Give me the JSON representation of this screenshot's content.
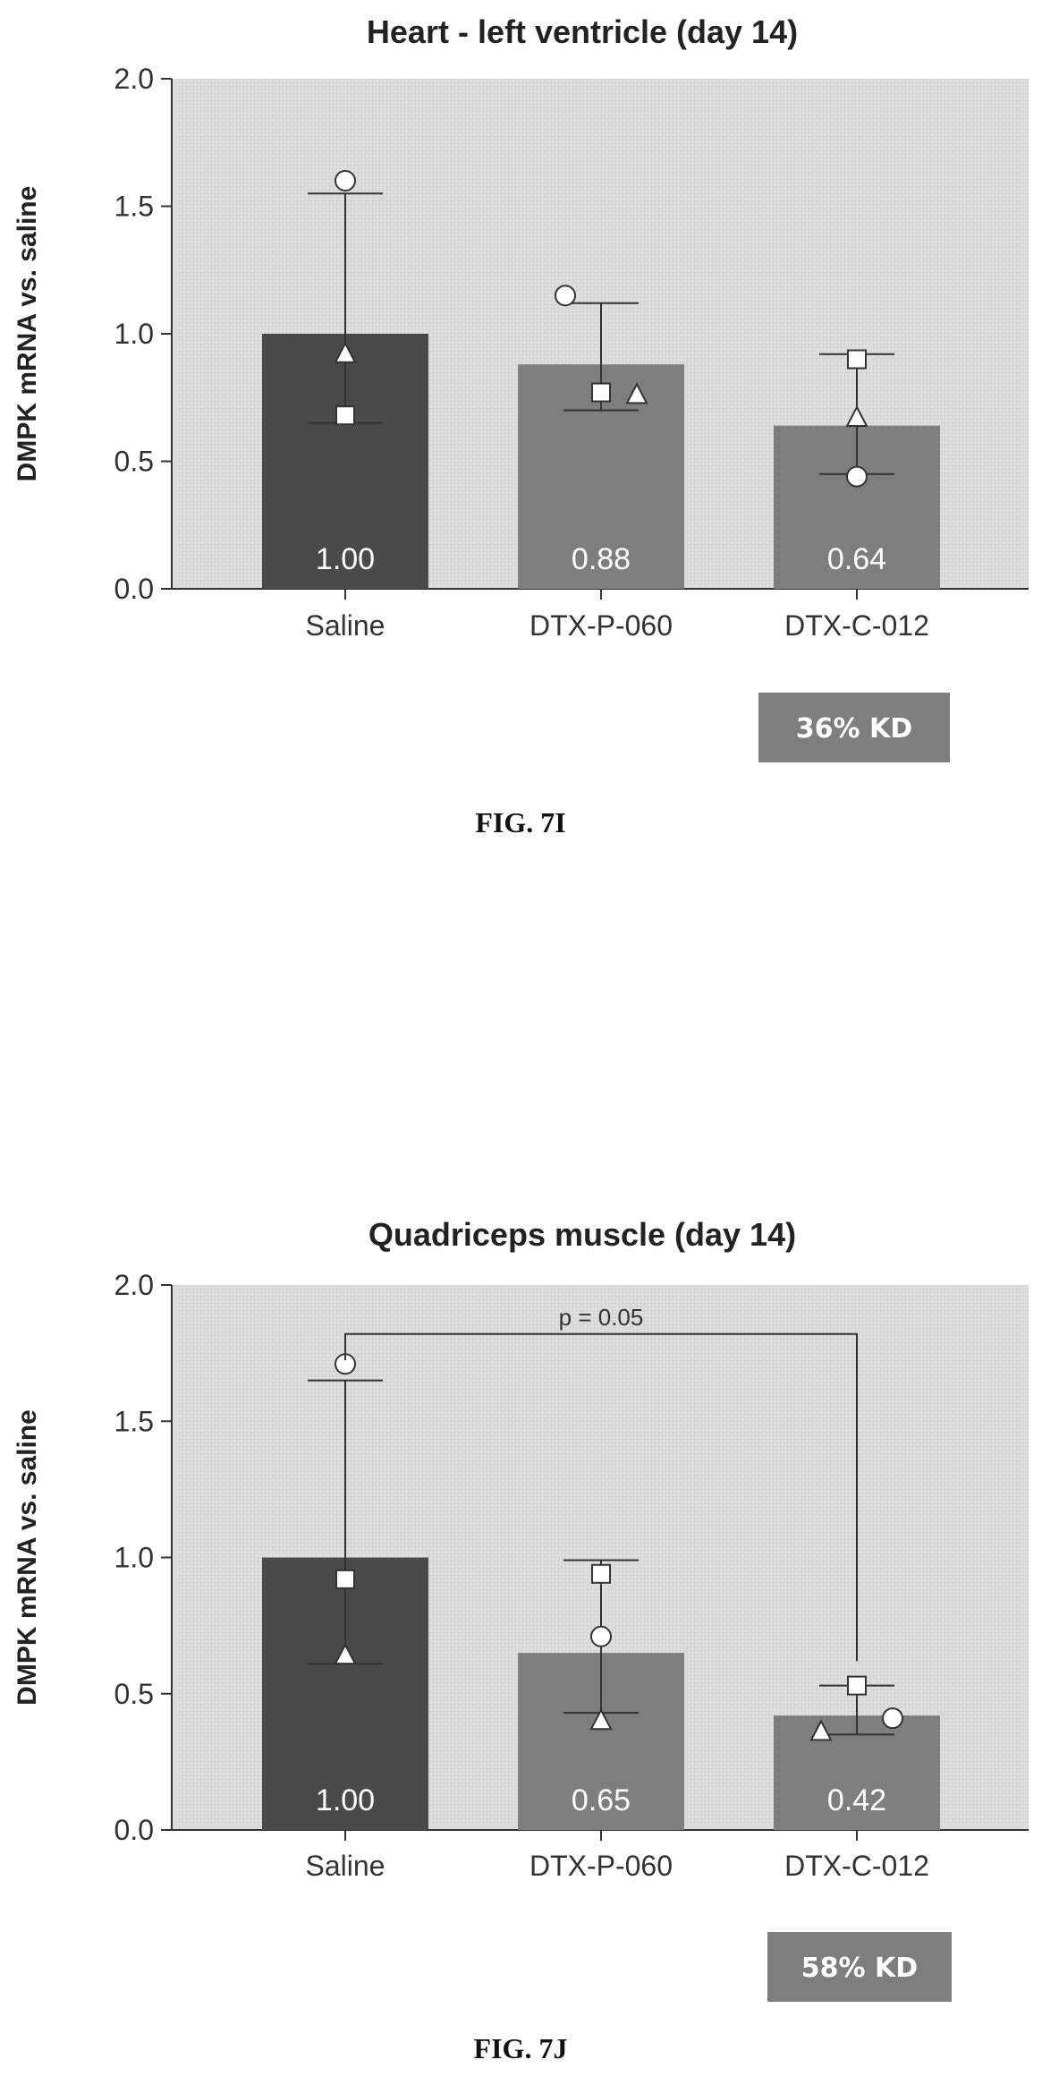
{
  "charts": [
    {
      "figure_label": "FIG. 7I",
      "kd_label": "36% KD",
      "chart_data": {
        "type": "bar",
        "title": "Heart - left ventricle (day 14)",
        "ylabel": "DMPK mRNA vs. saline",
        "xlabel": "",
        "ylim": [
          0,
          2.0
        ],
        "yticks": [
          "0.0",
          "0.5",
          "1.0",
          "1.5",
          "2.0"
        ],
        "categories": [
          "Saline",
          "DTX-P-060",
          "DTX-C-012"
        ],
        "values": [
          1.0,
          0.88,
          0.64
        ],
        "value_labels": [
          "1.00",
          "0.88",
          "0.64"
        ],
        "error_high": [
          1.55,
          1.12,
          0.92
        ],
        "error_low": [
          0.65,
          0.7,
          0.45
        ],
        "bar_colors": [
          "#4a4a4a",
          "#7e7e7e",
          "#7e7e7e"
        ],
        "points": [
          [
            {
              "shape": "circle",
              "y": 1.6
            },
            {
              "shape": "triangle",
              "y": 0.92
            },
            {
              "shape": "square",
              "y": 0.68
            }
          ],
          [
            {
              "shape": "circle",
              "y": 1.15
            },
            {
              "shape": "square",
              "y": 0.77
            },
            {
              "shape": "triangle",
              "y": 0.76
            }
          ],
          [
            {
              "shape": "square",
              "y": 0.9
            },
            {
              "shape": "triangle",
              "y": 0.67
            },
            {
              "shape": "circle",
              "y": 0.44
            }
          ]
        ],
        "annotation": null
      }
    },
    {
      "figure_label": "FIG. 7J",
      "kd_label": "58% KD",
      "chart_data": {
        "type": "bar",
        "title": "Quadriceps muscle (day 14)",
        "ylabel": "DMPK mRNA vs. saline",
        "xlabel": "",
        "ylim": [
          0,
          2.0
        ],
        "yticks": [
          "0.0",
          "0.5",
          "1.0",
          "1.5",
          "2.0"
        ],
        "categories": [
          "Saline",
          "DTX-P-060",
          "DTX-C-012"
        ],
        "values": [
          1.0,
          0.65,
          0.42
        ],
        "value_labels": [
          "1.00",
          "0.65",
          "0.42"
        ],
        "error_high": [
          1.65,
          0.99,
          0.53
        ],
        "error_low": [
          0.61,
          0.43,
          0.35
        ],
        "bar_colors": [
          "#4a4a4a",
          "#7e7e7e",
          "#7e7e7e"
        ],
        "points": [
          [
            {
              "shape": "circle",
              "y": 1.71
            },
            {
              "shape": "square",
              "y": 0.92
            },
            {
              "shape": "triangle",
              "y": 0.64
            }
          ],
          [
            {
              "shape": "square",
              "y": 0.94
            },
            {
              "shape": "circle",
              "y": 0.71
            },
            {
              "shape": "triangle",
              "y": 0.4
            }
          ],
          [
            {
              "shape": "square",
              "y": 0.53
            },
            {
              "shape": "circle",
              "y": 0.41
            },
            {
              "shape": "triangle",
              "y": 0.36
            }
          ]
        ],
        "annotation": {
          "text": "p = 0.05",
          "from": 0,
          "to": 2,
          "y": 1.82
        }
      }
    }
  ]
}
